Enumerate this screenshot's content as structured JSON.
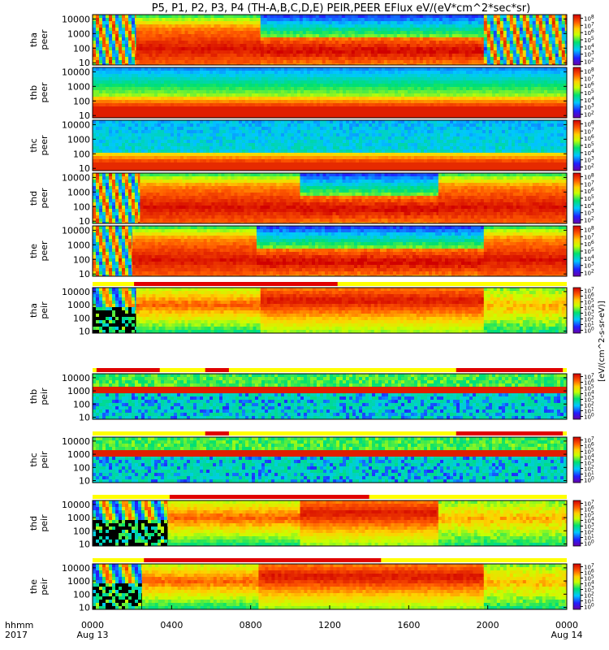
{
  "title": "P5, P1, P2, P3, P4 (TH-A,B,C,D,E) PEIR,PEER EFlux eV/(eV*cm^2*sec*sr)",
  "colorbar_label": "[eV/(cm^2-s-sr-eV)]",
  "time_axis": {
    "label_row1": "hhmm",
    "label_row2": "2017",
    "ticks": [
      {
        "h": 0,
        "label": "0000",
        "sub": "Aug 13"
      },
      {
        "h": 4,
        "label": "0400",
        "sub": ""
      },
      {
        "h": 8,
        "label": "0800",
        "sub": ""
      },
      {
        "h": 12,
        "label": "1200",
        "sub": ""
      },
      {
        "h": 16,
        "label": "1600",
        "sub": ""
      },
      {
        "h": 20,
        "label": "2000",
        "sub": ""
      },
      {
        "h": 24,
        "label": "0000",
        "sub": "Aug 14"
      }
    ]
  },
  "chart_data": {
    "type": "heatmap",
    "title": "P5, P1, P2, P3, P4 (TH-A,B,C,D,E) PEIR,PEER EFlux eV/(eV*cm^2*sec*sr)",
    "xlabel": "hhmm",
    "xlim": [
      0,
      24
    ],
    "yscale": "log",
    "ylim": [
      7,
      20000
    ],
    "y_ticks": [
      10,
      100,
      1000,
      10000
    ],
    "y_tick_labels": [
      "10",
      "100",
      "1000",
      "10000"
    ],
    "colorscale": "rainbow (violet-blue-cyan-green-yellow-red)",
    "panels": [
      {
        "id": "tha-peer",
        "label1": "tha",
        "label2": "peer",
        "cbar_ticks": [
          "10^2",
          "10^3",
          "10^4",
          "10^5",
          "10^6",
          "10^7",
          "10^8"
        ],
        "segments": [
          {
            "t0": 0,
            "t1": 2.2,
            "style": "mixed"
          },
          {
            "t0": 2.2,
            "t1": 8.5,
            "style": "magnetosheath"
          },
          {
            "t0": 8.5,
            "t1": 19.8,
            "style": "plasmasheet-electron"
          },
          {
            "t0": 19.8,
            "t1": 24,
            "style": "mixed"
          }
        ]
      },
      {
        "id": "thb-peer",
        "label1": "thb",
        "label2": "peer",
        "cbar_ticks": [
          "10^2",
          "10^3",
          "10^4",
          "10^5",
          "10^6",
          "10^7",
          "10^8"
        ],
        "segments": [
          {
            "t0": 0,
            "t1": 24,
            "style": "solarwind-electron"
          }
        ]
      },
      {
        "id": "thc-peer",
        "label1": "thc",
        "label2": "peer",
        "cbar_ticks": [
          "10^2",
          "10^3",
          "10^4",
          "10^5",
          "10^6",
          "10^7",
          "10^8"
        ],
        "segments": [
          {
            "t0": 0,
            "t1": 24,
            "style": "solarwind-electron-noisy"
          }
        ]
      },
      {
        "id": "thd-peer",
        "label1": "thd",
        "label2": "peer",
        "cbar_ticks": [
          "10^2",
          "10^3",
          "10^4",
          "10^5",
          "10^6",
          "10^7",
          "10^8"
        ],
        "segments": [
          {
            "t0": 0,
            "t1": 2.4,
            "style": "mixed"
          },
          {
            "t0": 2.4,
            "t1": 10.5,
            "style": "magnetosheath"
          },
          {
            "t0": 10.5,
            "t1": 17.5,
            "style": "plasmasheet-electron"
          },
          {
            "t0": 17.5,
            "t1": 24,
            "style": "magnetosheath"
          }
        ]
      },
      {
        "id": "the-peer",
        "label1": "the",
        "label2": "peer",
        "cbar_ticks": [
          "10^2",
          "10^3",
          "10^4",
          "10^5",
          "10^6",
          "10^7",
          "10^8"
        ],
        "segments": [
          {
            "t0": 0,
            "t1": 2.0,
            "style": "mixed"
          },
          {
            "t0": 2.0,
            "t1": 8.3,
            "style": "magnetosheath"
          },
          {
            "t0": 8.3,
            "t1": 19.8,
            "style": "plasmasheet-electron"
          },
          {
            "t0": 19.8,
            "t1": 24,
            "style": "magnetosheath"
          }
        ]
      },
      {
        "id": "tha-peir",
        "label1": "tha",
        "label2": "peir",
        "cbar_ticks": [
          "10^0",
          "10^1",
          "10^2",
          "10^3",
          "10^4",
          "10^5",
          "10^6",
          "10^7"
        ],
        "mode_bar": [
          {
            "t0": 2.1,
            "t1": 12.4,
            "color": "#e00000"
          }
        ],
        "segments": [
          {
            "t0": 0,
            "t1": 2.2,
            "style": "ion-dark"
          },
          {
            "t0": 2.2,
            "t1": 8.5,
            "style": "ion-sheath"
          },
          {
            "t0": 8.5,
            "t1": 19.8,
            "style": "ion-plasmasheet"
          },
          {
            "t0": 19.8,
            "t1": 24,
            "style": "ion-mixed"
          }
        ]
      },
      {
        "id": "thb-peir",
        "label1": "thb",
        "label2": "peir",
        "cbar_ticks": [
          "10^0",
          "10^1",
          "10^2",
          "10^3",
          "10^4",
          "10^5",
          "10^6",
          "10^7"
        ],
        "mode_bar": [
          {
            "t0": 0.2,
            "t1": 3.4,
            "color": "#e00000"
          },
          {
            "t0": 5.7,
            "t1": 6.9,
            "color": "#e00000"
          },
          {
            "t0": 18.4,
            "t1": 23.8,
            "color": "#e00000"
          }
        ],
        "segments": [
          {
            "t0": 0,
            "t1": 24,
            "style": "ion-solarwind"
          }
        ]
      },
      {
        "id": "thc-peir",
        "label1": "thc",
        "label2": "peir",
        "cbar_ticks": [
          "10^0",
          "10^1",
          "10^2",
          "10^3",
          "10^4",
          "10^5",
          "10^6",
          "10^7"
        ],
        "mode_bar": [
          {
            "t0": 5.7,
            "t1": 6.9,
            "color": "#e00000"
          },
          {
            "t0": 18.4,
            "t1": 23.8,
            "color": "#e00000"
          }
        ],
        "segments": [
          {
            "t0": 0,
            "t1": 24,
            "style": "ion-solarwind"
          }
        ]
      },
      {
        "id": "thd-peir",
        "label1": "thd",
        "label2": "peir",
        "cbar_ticks": [
          "10^0",
          "10^1",
          "10^2",
          "10^3",
          "10^4",
          "10^5",
          "10^6",
          "10^7"
        ],
        "mode_bar": [
          {
            "t0": 3.9,
            "t1": 14.0,
            "color": "#e00000"
          }
        ],
        "segments": [
          {
            "t0": 0,
            "t1": 3.8,
            "style": "ion-dark"
          },
          {
            "t0": 3.8,
            "t1": 10.5,
            "style": "ion-sheath"
          },
          {
            "t0": 10.5,
            "t1": 17.5,
            "style": "ion-plasmasheet"
          },
          {
            "t0": 17.5,
            "t1": 24,
            "style": "ion-mixed"
          }
        ]
      },
      {
        "id": "the-peir",
        "label1": "the",
        "label2": "peir",
        "cbar_ticks": [
          "10^0",
          "10^1",
          "10^2",
          "10^3",
          "10^4",
          "10^5",
          "10^6",
          "10^7"
        ],
        "mode_bar": [
          {
            "t0": 2.6,
            "t1": 14.6,
            "color": "#e00000"
          }
        ],
        "segments": [
          {
            "t0": 0,
            "t1": 2.5,
            "style": "ion-dark"
          },
          {
            "t0": 2.5,
            "t1": 8.4,
            "style": "ion-sheath"
          },
          {
            "t0": 8.4,
            "t1": 19.8,
            "style": "ion-plasmasheet"
          },
          {
            "t0": 19.8,
            "t1": 24,
            "style": "ion-mixed"
          }
        ]
      }
    ]
  }
}
